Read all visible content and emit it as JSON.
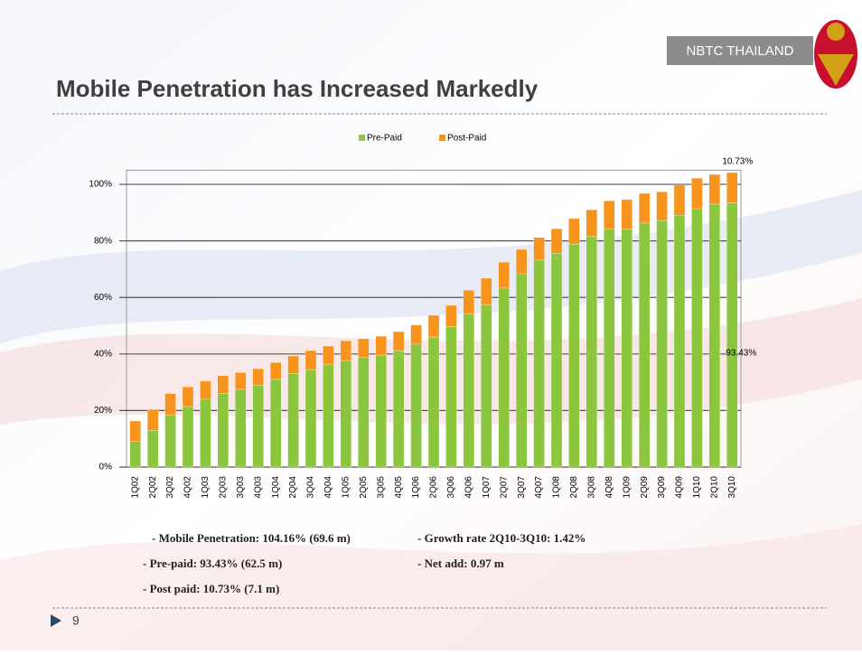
{
  "slide": {
    "badge": "NBTC THAILAND",
    "title": "Mobile Penetration has Increased Markedly",
    "page_number": "9",
    "bullets": [
      "- Mobile Penetration: 104.16% (69.6 m)",
      "- Growth rate 2Q10-3Q10: 1.42%",
      "- Pre-paid: 93.43% (62.5 m)",
      "- Net add: 0.97 m",
      "- Post paid: 10.73% (7.1 m)"
    ]
  },
  "chart_data": {
    "type": "stacked-bar",
    "categories": [
      "1Q02",
      "2Q02",
      "3Q02",
      "4Q02",
      "1Q03",
      "2Q03",
      "3Q03",
      "4Q03",
      "1Q04",
      "2Q04",
      "3Q04",
      "4Q04",
      "1Q05",
      "2Q05",
      "3Q05",
      "4Q05",
      "1Q06",
      "2Q06",
      "3Q06",
      "4Q06",
      "1Q07",
      "2Q07",
      "3Q07",
      "4Q07",
      "1Q08",
      "2Q08",
      "3Q08",
      "4Q08",
      "1Q09",
      "2Q09",
      "3Q09",
      "4Q09",
      "1Q10",
      "2Q10",
      "3Q10"
    ],
    "series": [
      {
        "name": "Pre-Paid",
        "color": "#8cc63f",
        "values": [
          9,
          13,
          18.5,
          21.4,
          24,
          26,
          27.5,
          29,
          31,
          33,
          34.5,
          36.4,
          37.7,
          38.7,
          39.6,
          41.2,
          43.5,
          46,
          49.8,
          54.3,
          57.5,
          63.3,
          68.4,
          73.2,
          75.7,
          78.9,
          81.5,
          84.3,
          84.3,
          86.3,
          87.2,
          89.1,
          91.4,
          93,
          93.43
        ],
        "value_labels": [
          null,
          null,
          null,
          null,
          null,
          null,
          null,
          null,
          null,
          null,
          null,
          null,
          null,
          null,
          null,
          null,
          null,
          null,
          null,
          null,
          null,
          null,
          null,
          null,
          null,
          null,
          null,
          null,
          null,
          null,
          null,
          null,
          null,
          null,
          "93.43%"
        ]
      },
      {
        "name": "Post-Paid",
        "color": "#f7941d",
        "values": [
          7.3,
          7.4,
          7.5,
          7,
          6.4,
          6.3,
          6,
          5.8,
          6,
          6.3,
          6.7,
          6.4,
          7,
          6.7,
          6.7,
          6.7,
          6.7,
          7.7,
          7.4,
          8.3,
          9.3,
          9.2,
          8.6,
          8,
          8.6,
          9,
          9.5,
          9.9,
          10.3,
          10.5,
          10.2,
          10.6,
          10.8,
          10.5,
          10.73
        ],
        "value_labels": [
          null,
          null,
          null,
          null,
          null,
          null,
          null,
          null,
          null,
          null,
          null,
          null,
          null,
          null,
          null,
          null,
          null,
          null,
          null,
          null,
          null,
          null,
          null,
          null,
          null,
          null,
          null,
          null,
          null,
          null,
          null,
          null,
          null,
          null,
          "10.73%"
        ]
      }
    ],
    "ylim": [
      0,
      105
    ],
    "yticks": [
      {
        "value": 0,
        "label": "0%"
      },
      {
        "value": 20,
        "label": "20%"
      },
      {
        "value": 40,
        "label": "40%"
      },
      {
        "value": 60,
        "label": "60%"
      },
      {
        "value": 80,
        "label": "80%"
      },
      {
        "value": 100,
        "label": "100%"
      }
    ],
    "grid": true,
    "legend": "top"
  }
}
